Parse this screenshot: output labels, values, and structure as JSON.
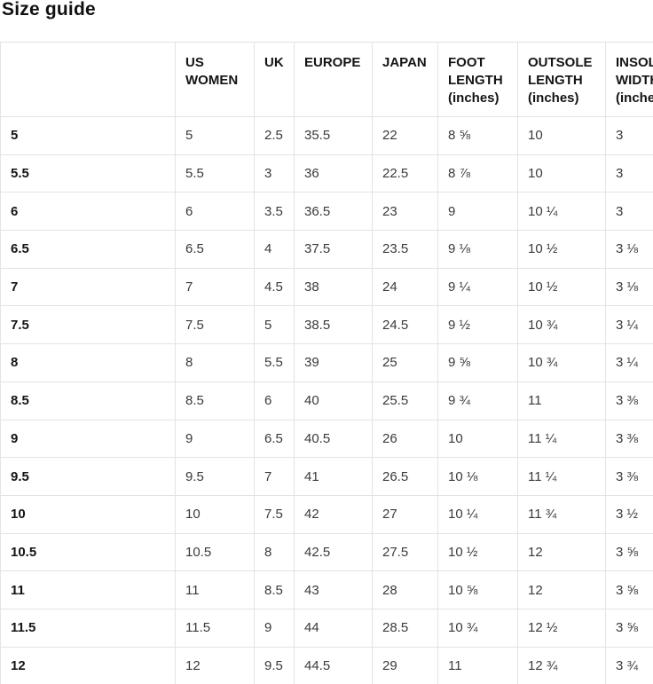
{
  "title": "Size guide",
  "colors": {
    "border": "#e3e3e3",
    "heading_text": "#141414",
    "cell_text": "#3a3a3a",
    "background": "#ffffff"
  },
  "table": {
    "columns": [
      "",
      "US WOMEN",
      "UK",
      "EUROPE",
      "JAPAN",
      "FOOT LENGTH (inches)",
      "OUTSOLE LENGTH (inches)",
      "INSOLE WIDTH (inches)"
    ],
    "rows": [
      [
        "5",
        "5",
        "2.5",
        "35.5",
        "22",
        "8 ⅝",
        "10",
        "3"
      ],
      [
        "5.5",
        "5.5",
        "3",
        "36",
        "22.5",
        "8 ⅞",
        "10",
        "3"
      ],
      [
        "6",
        "6",
        "3.5",
        "36.5",
        "23",
        "9",
        "10 ¼",
        "3"
      ],
      [
        "6.5",
        "6.5",
        "4",
        "37.5",
        "23.5",
        "9 ⅛",
        "10 ½",
        "3 ⅛"
      ],
      [
        "7",
        "7",
        "4.5",
        "38",
        "24",
        "9 ¼",
        "10 ½",
        "3 ⅛"
      ],
      [
        "7.5",
        "7.5",
        "5",
        "38.5",
        "24.5",
        "9 ½",
        "10 ¾",
        "3 ¼"
      ],
      [
        "8",
        "8",
        "5.5",
        "39",
        "25",
        "9 ⅝",
        "10 ¾",
        "3 ¼"
      ],
      [
        "8.5",
        "8.5",
        "6",
        "40",
        "25.5",
        "9 ¾",
        "11",
        "3 ⅜"
      ],
      [
        "9",
        "9",
        "6.5",
        "40.5",
        "26",
        "10",
        "11 ¼",
        "3 ⅜"
      ],
      [
        "9.5",
        "9.5",
        "7",
        "41",
        "26.5",
        "10 ⅛",
        "11 ¼",
        "3 ⅜"
      ],
      [
        "10",
        "10",
        "7.5",
        "42",
        "27",
        "10 ¼",
        "11 ¾",
        "3 ½"
      ],
      [
        "10.5",
        "10.5",
        "8",
        "42.5",
        "27.5",
        "10 ½",
        "12",
        "3 ⅝"
      ],
      [
        "11",
        "11",
        "8.5",
        "43",
        "28",
        "10 ⅝",
        "12",
        "3 ⅝"
      ],
      [
        "11.5",
        "11.5",
        "9",
        "44",
        "28.5",
        "10 ¾",
        "12 ½",
        "3 ⅝"
      ],
      [
        "12",
        "12",
        "9.5",
        "44.5",
        "29",
        "11",
        "12 ¾",
        "3 ¾"
      ]
    ]
  }
}
